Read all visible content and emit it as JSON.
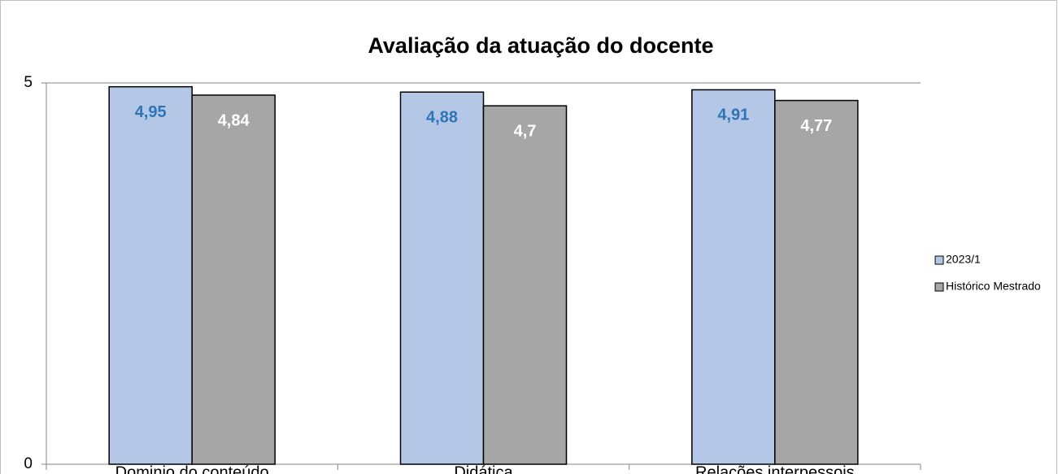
{
  "chart_data": {
    "type": "bar",
    "title": "Avaliação da atuação do docente",
    "categories": [
      "Dominio do conteúdo",
      "Didática",
      "Relações interpessois"
    ],
    "series": [
      {
        "name": "2023/1",
        "color": "#b4c7e7",
        "label_color": "#2e75b6",
        "values": [
          4.95,
          4.88,
          4.91
        ],
        "value_labels": [
          "4,95",
          "4,88",
          "4,91"
        ]
      },
      {
        "name": "Histórico Mestrado",
        "color": "#a6a6a6",
        "label_color": "#ffffff",
        "values": [
          4.84,
          4.7,
          4.77
        ],
        "value_labels": [
          "4,84",
          "4,7",
          "4,77"
        ]
      }
    ],
    "ylim": [
      0,
      5
    ],
    "yticks": [
      0,
      5
    ],
    "grid": true,
    "legend": "right"
  }
}
